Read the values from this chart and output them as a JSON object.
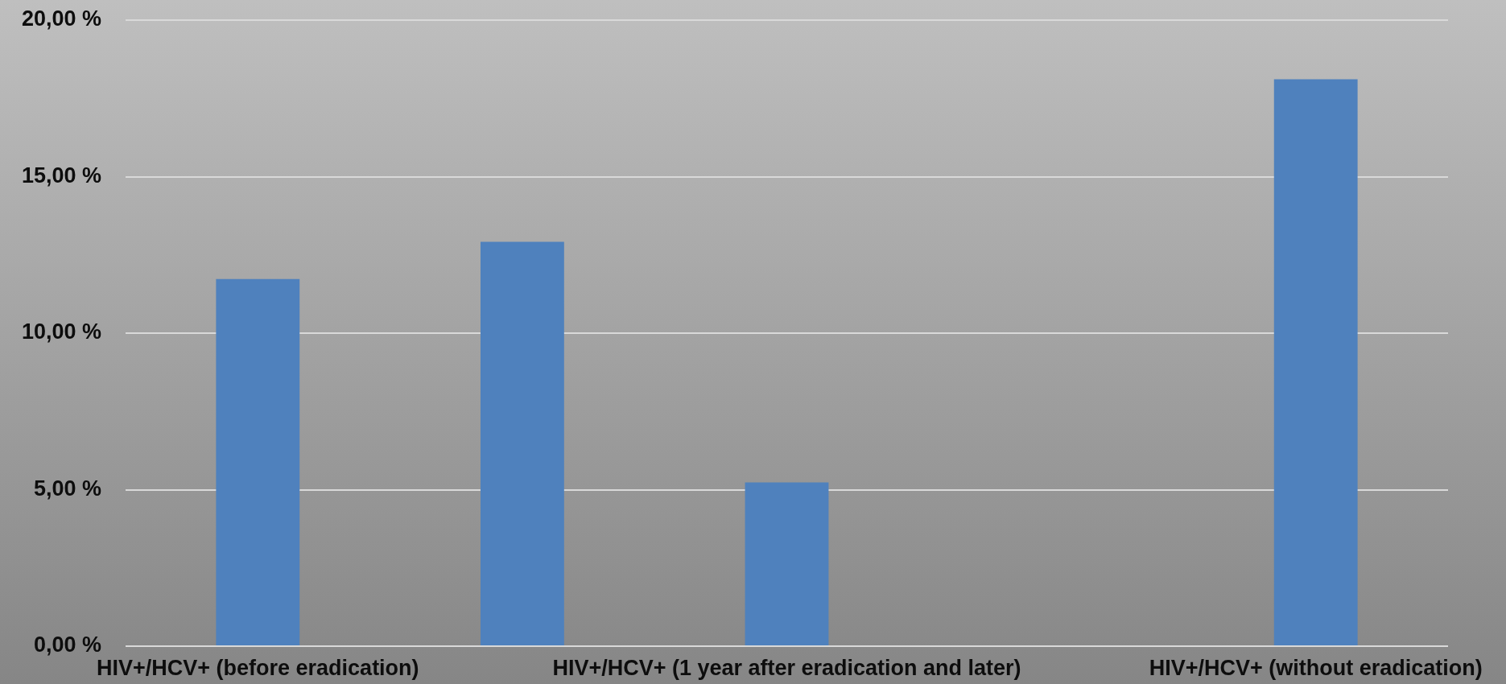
{
  "chart_data": {
    "type": "bar",
    "categories": [
      "HIV+/HCV+ (before eradication)",
      null,
      "HIV+/HCV+ (1 year after eradication and later)",
      null,
      "HIV+/HCV+ (without eradication)"
    ],
    "values": [
      11.73,
      12.92,
      5.23,
      null,
      18.11
    ],
    "color": "#4f81bd",
    "ylim": [
      0,
      20
    ],
    "yticks": [
      {
        "value": 0,
        "label": "0,00 %"
      },
      {
        "value": 5,
        "label": "5,00 %"
      },
      {
        "value": 10,
        "label": "10,00 %"
      },
      {
        "value": 15,
        "label": "15,00 %"
      },
      {
        "value": 20,
        "label": "20,00 %"
      }
    ],
    "grid": "y"
  }
}
